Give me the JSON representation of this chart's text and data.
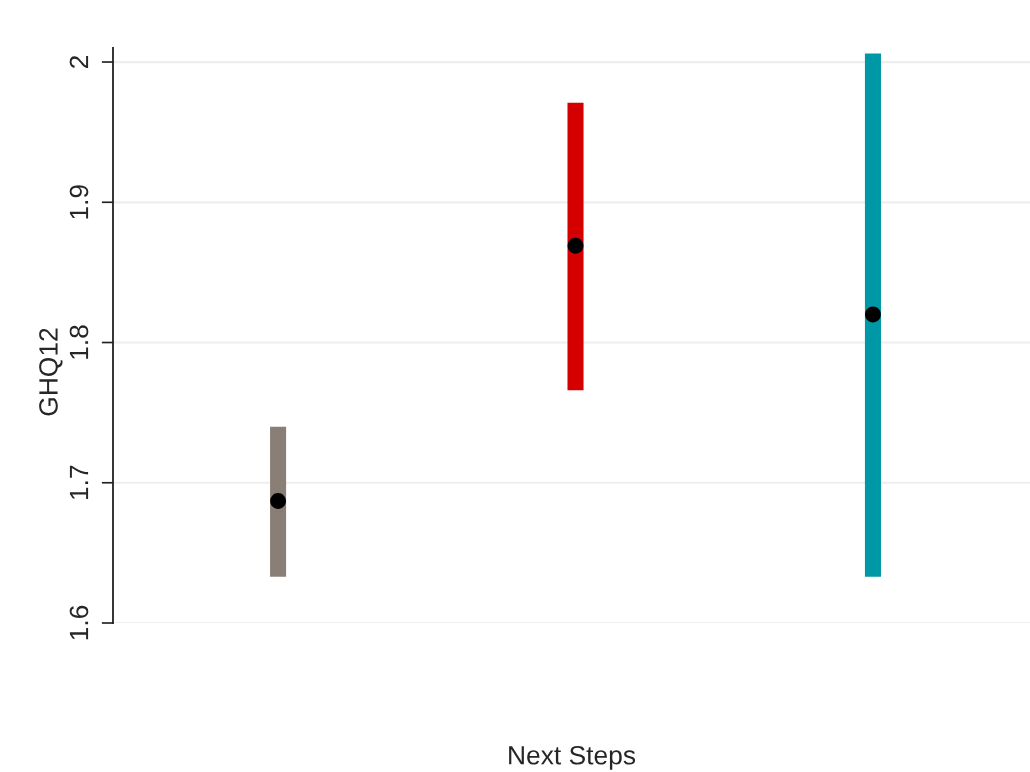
{
  "chart_data": {
    "type": "bar",
    "xlabel": "Next Steps",
    "ylabel": "GHQ12",
    "categories": [
      null,
      null,
      null
    ],
    "series": [
      {
        "base": [
          1.633,
          1.766,
          1.633
        ],
        "values": [
          0.107,
          0.205,
          0.373
        ],
        "colors": [
          "#8a7f77",
          "#d40000",
          "#0097a7"
        ]
      },
      {
        "type": "scatter",
        "color": "#000000",
        "marker": "circle",
        "values": [
          1.687,
          1.869,
          1.82
        ]
      }
    ],
    "ylim": [
      1.6,
      2.01
    ],
    "yticks": [
      1.6,
      1.7,
      1.8,
      1.9,
      2
    ],
    "grid": "y",
    "tick_labels": "y"
  }
}
